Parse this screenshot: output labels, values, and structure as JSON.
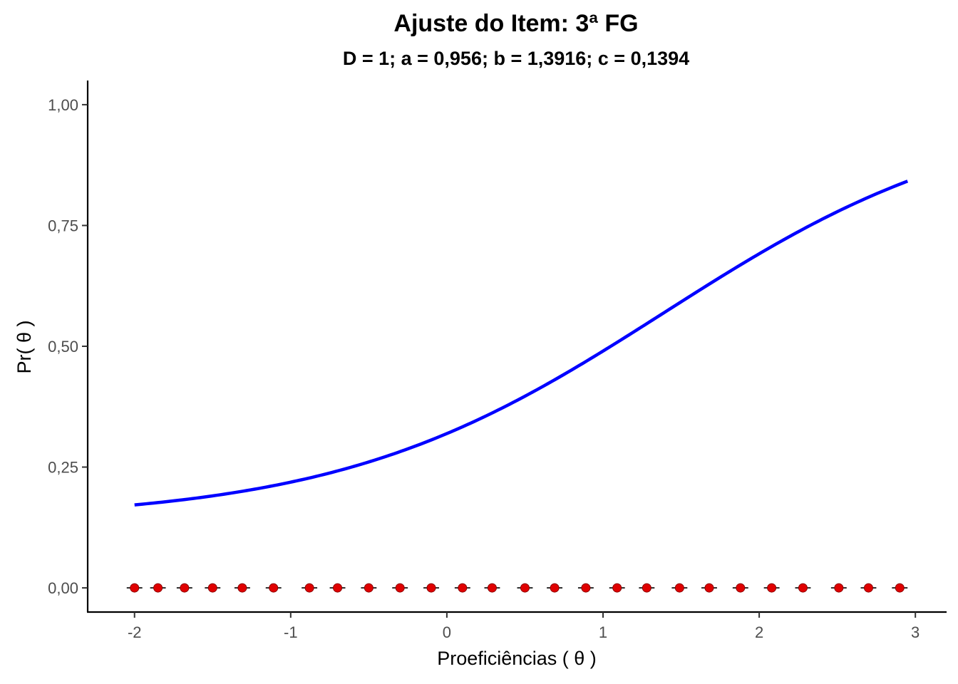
{
  "chart_data": {
    "type": "line",
    "title": "Ajuste do Item: 3ª FG",
    "subtitle": "D = 1; a = 0,956; b = 1,3916; c = 0,1394",
    "xlabel": "Proeficiências ( θ )",
    "ylabel": "Pr( θ )",
    "xlim": [
      -2.3,
      3.2
    ],
    "ylim": [
      -0.05,
      1.05
    ],
    "x_ticks": [
      -2,
      -1,
      0,
      1,
      2,
      3
    ],
    "x_tick_labels": [
      "-2",
      "-1",
      "0",
      "1",
      "2",
      "3"
    ],
    "y_ticks": [
      0,
      0.25,
      0.5,
      0.75,
      1
    ],
    "y_tick_labels": [
      "0,00",
      "0,25",
      "0,50",
      "0,75",
      "1,00"
    ],
    "grid": false,
    "legend": "none",
    "model": {
      "D": 1,
      "a": 0.956,
      "b": 1.3916,
      "c": 0.1394
    },
    "series": [
      {
        "kind": "icc-curve",
        "color": "#0000ff",
        "x_range": [
          -2,
          2.95
        ]
      },
      {
        "kind": "observed-points",
        "color": "#e00000",
        "x": [
          -2.0,
          -1.85,
          -1.68,
          -1.5,
          -1.31,
          -1.11,
          -0.88,
          -0.7,
          -0.5,
          -0.3,
          -0.1,
          0.1,
          0.29,
          0.5,
          0.69,
          0.89,
          1.09,
          1.28,
          1.49,
          1.68,
          1.88,
          2.08,
          2.28,
          2.51,
          2.7,
          2.9
        ],
        "y": [
          0,
          0,
          0,
          0,
          0,
          0,
          0,
          0,
          0,
          0,
          0,
          0,
          0,
          0,
          0,
          0,
          0,
          0,
          0,
          0,
          0,
          0,
          0,
          0,
          0,
          0
        ],
        "error_half_width": 0.05
      }
    ]
  }
}
